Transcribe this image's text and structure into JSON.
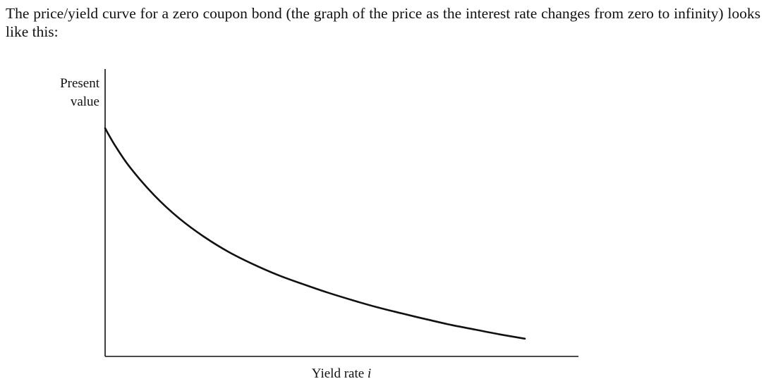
{
  "text": {
    "intro": "The price/yield curve for a zero coupon bond (the graph of the price as the interest rate changes from zero to infinity) looks like this:"
  },
  "chart_data": {
    "type": "line",
    "title": "",
    "xlabel_text": "Yield rate ",
    "xlabel_var": "i",
    "ylabel_lines": [
      "Present",
      "value"
    ],
    "grid": false,
    "legend": "none",
    "tick_labels": false,
    "line_color": "#111111",
    "x_range": [
      0,
      1
    ],
    "y_range": [
      0,
      1
    ],
    "series": [
      {
        "x": [
          0,
          0.02,
          0.05,
          0.1,
          0.15,
          0.2,
          0.25,
          0.3,
          0.35,
          0.4,
          0.45,
          0.5,
          0.55,
          0.6,
          0.65,
          0.7,
          0.75,
          0.8,
          0.85
        ],
        "y": [
          0.81,
          0.749,
          0.672,
          0.571,
          0.49,
          0.425,
          0.371,
          0.327,
          0.289,
          0.257,
          0.227,
          0.2,
          0.175,
          0.153,
          0.132,
          0.112,
          0.095,
          0.078,
          0.063
        ]
      }
    ]
  }
}
